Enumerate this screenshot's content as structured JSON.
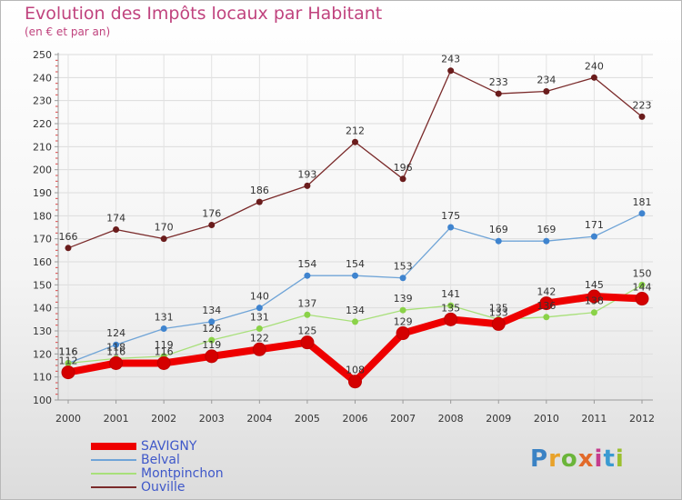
{
  "chart_data": {
    "type": "line",
    "title": "Evolution des Impôts locaux par Habitant",
    "subtitle": "(en € et par an)",
    "categories": [
      "2000",
      "2001",
      "2002",
      "2003",
      "2004",
      "2005",
      "2006",
      "2007",
      "2008",
      "2009",
      "2010",
      "2011",
      "2012"
    ],
    "ylim": [
      100,
      250
    ],
    "yticks": [
      100,
      110,
      120,
      130,
      140,
      150,
      160,
      170,
      180,
      190,
      200,
      210,
      220,
      230,
      240,
      250
    ],
    "grid": true,
    "legend_position": "bottom-left",
    "series": [
      {
        "name": "SAVIGNY",
        "color": "#ee0000",
        "point_color": "#d40000",
        "width": 8,
        "values": [
          112,
          116,
          116,
          119,
          122,
          125,
          108,
          129,
          135,
          133,
          142,
          145,
          144
        ],
        "labels": [
          "112",
          "116",
          "116",
          "119",
          "122",
          "125",
          "108",
          "129",
          "135",
          "133",
          "142",
          "145",
          "144"
        ]
      },
      {
        "name": "Belval",
        "color": "#6fa4d7",
        "point_color": "#3f84cf",
        "width": 1.3,
        "values": [
          116,
          124,
          131,
          134,
          140,
          154,
          154,
          153,
          175,
          169,
          169,
          171,
          181
        ],
        "labels": [
          "116",
          "124",
          "131",
          "134",
          "140",
          "154",
          "154",
          "153",
          "175",
          "169",
          "169",
          "171",
          "181"
        ]
      },
      {
        "name": "Montpinchon",
        "color": "#a8e07a",
        "point_color": "#8ad248",
        "width": 1.3,
        "values": [
          116,
          118,
          119,
          126,
          131,
          137,
          134,
          139,
          141,
          135,
          136,
          138,
          150
        ],
        "labels": [
          "116",
          "118",
          "119",
          "126",
          "131",
          "137",
          "134",
          "139",
          "141",
          "135",
          "136",
          "138",
          "150"
        ]
      },
      {
        "name": "Ouville",
        "color": "#7a2a2a",
        "point_color": "#6a1c1c",
        "width": 1.3,
        "values": [
          166,
          174,
          170,
          176,
          186,
          193,
          212,
          196,
          243,
          233,
          234,
          240,
          223
        ],
        "labels": [
          "166",
          "174",
          "170",
          "176",
          "186",
          "193",
          "212",
          "196",
          "243",
          "233",
          "234",
          "240",
          "223"
        ]
      }
    ]
  },
  "brand": {
    "letters": [
      "P",
      "r",
      "o",
      "x",
      "i",
      "t",
      "i"
    ],
    "colors": [
      "#3a82c4",
      "#e8a22a",
      "#6bb53a",
      "#e26a2a",
      "#c53c8e",
      "#3a9ad1",
      "#9bbf2e"
    ]
  }
}
